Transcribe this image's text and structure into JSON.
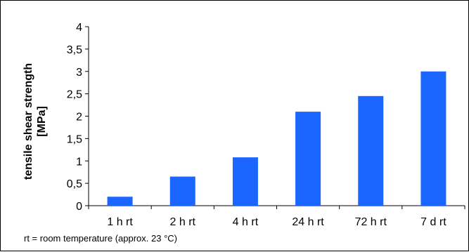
{
  "chart_data": {
    "type": "bar",
    "categories": [
      "1 h rt",
      "2 h rt",
      "4 h rt",
      "24 h rt",
      "72 h rt",
      "7 d rt"
    ],
    "values": [
      0.2,
      0.65,
      1.08,
      2.1,
      2.45,
      3.0
    ],
    "ylabel_line1": "tensile shear strength",
    "ylabel_line2": "[MPa]",
    "ylim": [
      0,
      4
    ],
    "yticks": [
      "0",
      "0,5",
      "1",
      "1,5",
      "2",
      "2,5",
      "3",
      "3,5",
      "4"
    ],
    "ytick_values": [
      0,
      0.5,
      1,
      1.5,
      2,
      2.5,
      3,
      3.5,
      4
    ],
    "grid": false,
    "legend": "none",
    "bar_color": "#1a66ff",
    "footnote": "rt = room temperature (approx. 23 °C)"
  }
}
